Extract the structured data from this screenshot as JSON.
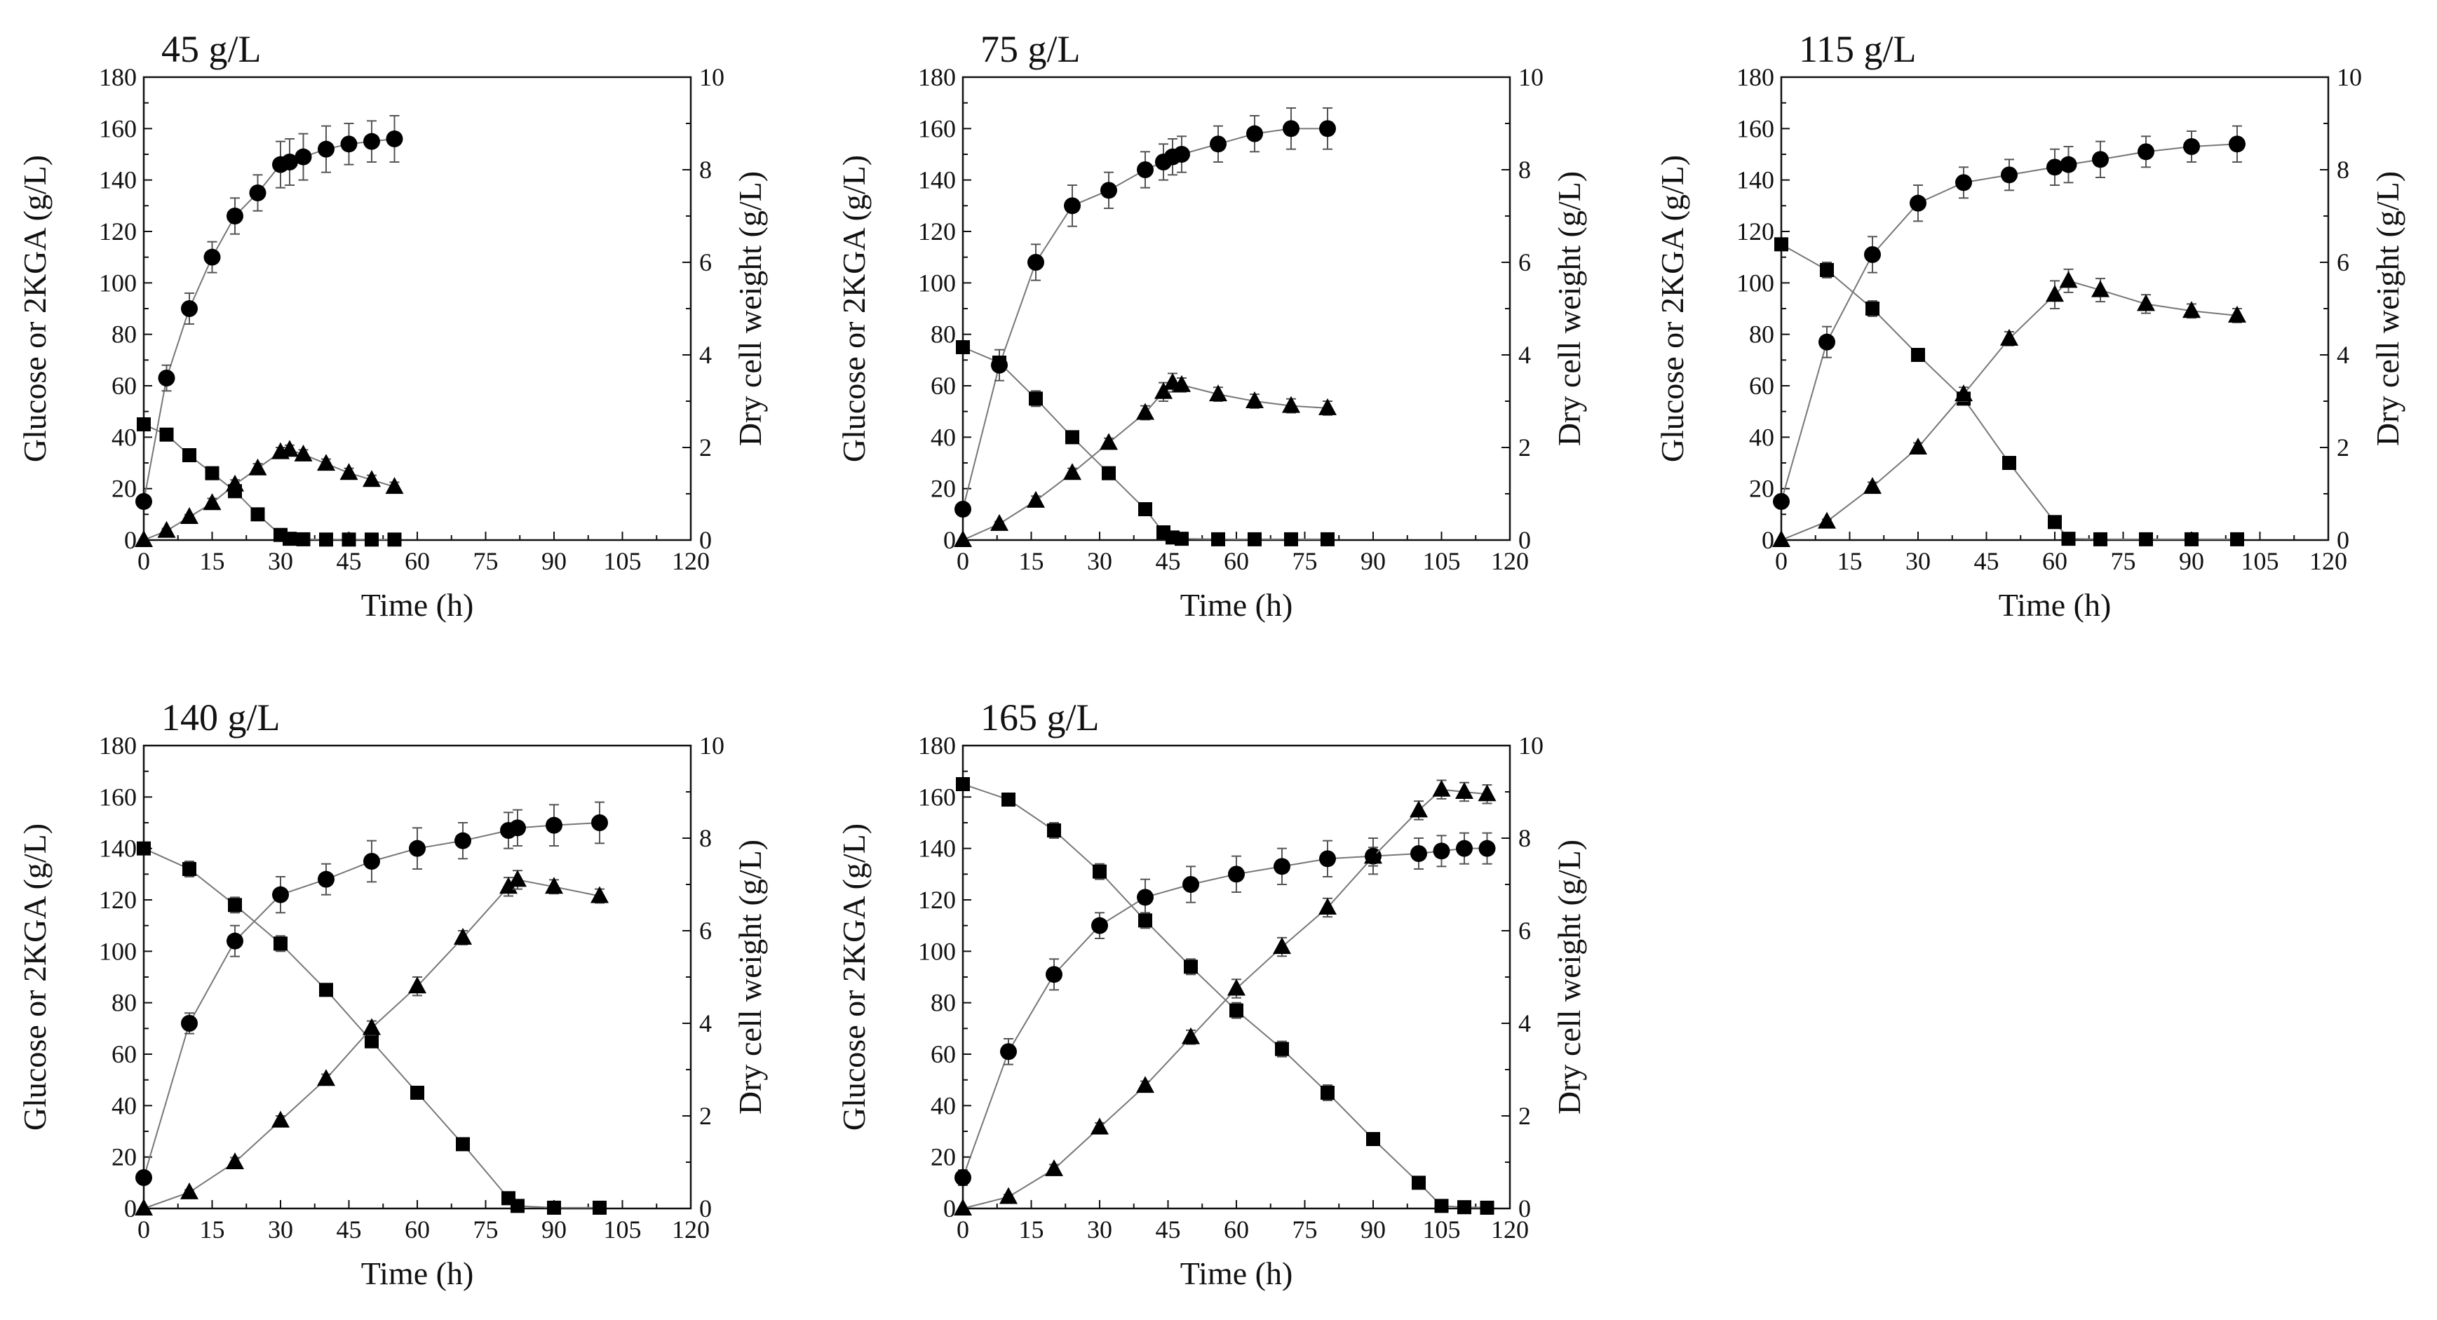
{
  "chart_data": [
    {
      "type": "line",
      "title": "45 g/L",
      "xlabel": "Time (h)",
      "ylabel": "Glucose or 2KGA (g/L)",
      "y2label": "Dry cell weight (g/L)",
      "xlim": [
        0,
        120
      ],
      "ylim": [
        0,
        180
      ],
      "y2lim": [
        0,
        10
      ],
      "xticks": [
        "0",
        "15",
        "30",
        "45",
        "60",
        "75",
        "90",
        "105",
        "120"
      ],
      "yticks": [
        "0",
        "20",
        "40",
        "60",
        "80",
        "100",
        "120",
        "140",
        "160",
        "180"
      ],
      "y2ticks": [
        "0",
        "2",
        "4",
        "6",
        "8",
        "10"
      ],
      "series": [
        {
          "name": "2KGA",
          "marker": "circle",
          "axis": "left",
          "x": [
            0,
            5,
            10,
            15,
            20,
            25,
            30,
            32,
            35,
            40,
            45,
            50,
            55
          ],
          "y": [
            15,
            63,
            90,
            110,
            126,
            135,
            146,
            147,
            149,
            152,
            154,
            155,
            156
          ],
          "err": [
            2,
            5,
            6,
            6,
            7,
            7,
            9,
            9,
            9,
            9,
            8,
            8,
            9
          ]
        },
        {
          "name": "Glucose",
          "marker": "square",
          "axis": "left",
          "x": [
            0,
            5,
            10,
            15,
            20,
            25,
            30,
            32,
            35,
            40,
            45,
            50,
            55
          ],
          "y": [
            45,
            41,
            33,
            26,
            19,
            10,
            2,
            0.5,
            0.3,
            0.2,
            0.2,
            0.2,
            0.2
          ],
          "err": [
            2,
            2,
            2,
            2,
            2,
            1,
            1,
            0,
            0,
            0,
            0,
            0,
            0
          ]
        },
        {
          "name": "Dry cell weight",
          "marker": "triangle",
          "axis": "right",
          "x": [
            0,
            5,
            10,
            15,
            20,
            25,
            30,
            32,
            35,
            40,
            45,
            50,
            55
          ],
          "y": [
            0,
            0.2,
            0.5,
            0.8,
            1.2,
            1.55,
            1.9,
            1.95,
            1.85,
            1.65,
            1.45,
            1.3,
            1.15
          ],
          "err": [
            0,
            0.05,
            0.05,
            0.1,
            0.1,
            0.1,
            0.1,
            0.1,
            0.1,
            0.1,
            0.1,
            0.1,
            0.1
          ]
        }
      ]
    },
    {
      "type": "line",
      "title": "75 g/L",
      "xlabel": "Time (h)",
      "ylabel": "Glucose or 2KGA (g/L)",
      "y2label": "Dry cell weight (g/L)",
      "xlim": [
        0,
        120
      ],
      "ylim": [
        0,
        180
      ],
      "y2lim": [
        0,
        10
      ],
      "xticks": [
        "0",
        "15",
        "30",
        "45",
        "60",
        "75",
        "90",
        "105",
        "120"
      ],
      "yticks": [
        "0",
        "20",
        "40",
        "60",
        "80",
        "100",
        "120",
        "140",
        "160",
        "180"
      ],
      "y2ticks": [
        "0",
        "2",
        "4",
        "6",
        "8",
        "10"
      ],
      "series": [
        {
          "name": "2KGA",
          "marker": "circle",
          "axis": "left",
          "x": [
            0,
            8,
            16,
            24,
            32,
            40,
            44,
            46,
            48,
            56,
            64,
            72,
            80
          ],
          "y": [
            12,
            68,
            108,
            130,
            136,
            144,
            147,
            149,
            150,
            154,
            158,
            160,
            160
          ],
          "err": [
            2,
            6,
            7,
            8,
            7,
            7,
            7,
            7,
            7,
            7,
            7,
            8,
            8
          ]
        },
        {
          "name": "Glucose",
          "marker": "square",
          "axis": "left",
          "x": [
            0,
            8,
            16,
            24,
            32,
            40,
            44,
            46,
            48,
            56,
            64,
            72,
            80
          ],
          "y": [
            75,
            69,
            55,
            40,
            26,
            12,
            3,
            1,
            0.5,
            0.3,
            0.3,
            0.3,
            0.3
          ],
          "err": [
            2,
            2,
            3,
            2,
            2,
            1,
            1,
            0,
            0,
            0,
            0,
            0,
            0
          ]
        },
        {
          "name": "Dry cell weight",
          "marker": "triangle",
          "axis": "right",
          "x": [
            0,
            8,
            16,
            24,
            32,
            40,
            44,
            46,
            48,
            56,
            64,
            72,
            80
          ],
          "y": [
            0,
            0.35,
            0.85,
            1.45,
            2.1,
            2.75,
            3.2,
            3.4,
            3.35,
            3.15,
            3.0,
            2.9,
            2.85
          ],
          "err": [
            0,
            0.05,
            0.1,
            0.1,
            0.1,
            0.15,
            0.2,
            0.2,
            0.15,
            0.15,
            0.15,
            0.15,
            0.15
          ]
        }
      ]
    },
    {
      "type": "line",
      "title": "115 g/L",
      "xlabel": "Time (h)",
      "ylabel": "Glucose or 2KGA (g/L)",
      "y2label": "Dry cell weight (g/L)",
      "xlim": [
        0,
        120
      ],
      "ylim": [
        0,
        180
      ],
      "y2lim": [
        0,
        10
      ],
      "xticks": [
        "0",
        "15",
        "30",
        "45",
        "60",
        "75",
        "90",
        "105",
        "120"
      ],
      "yticks": [
        "0",
        "20",
        "40",
        "60",
        "80",
        "100",
        "120",
        "140",
        "160",
        "180"
      ],
      "y2ticks": [
        "0",
        "2",
        "4",
        "6",
        "8",
        "10"
      ],
      "series": [
        {
          "name": "2KGA",
          "marker": "circle",
          "axis": "left",
          "x": [
            0,
            10,
            20,
            30,
            40,
            50,
            60,
            63,
            70,
            80,
            90,
            100
          ],
          "y": [
            15,
            77,
            111,
            131,
            139,
            142,
            145,
            146,
            148,
            151,
            153,
            154
          ],
          "err": [
            2,
            6,
            7,
            7,
            6,
            6,
            7,
            7,
            7,
            6,
            6,
            7
          ]
        },
        {
          "name": "Glucose",
          "marker": "square",
          "axis": "left",
          "x": [
            0,
            10,
            20,
            30,
            40,
            50,
            60,
            63,
            70,
            80,
            90,
            100
          ],
          "y": [
            115,
            105,
            90,
            72,
            55,
            30,
            7,
            0.5,
            0.3,
            0.3,
            0.3,
            0.3
          ],
          "err": [
            2,
            3,
            3,
            2,
            2,
            2,
            1,
            0,
            0,
            0,
            0,
            0
          ]
        },
        {
          "name": "Dry cell weight",
          "marker": "triangle",
          "axis": "right",
          "x": [
            0,
            10,
            20,
            30,
            40,
            50,
            60,
            63,
            70,
            80,
            90,
            100
          ],
          "y": [
            0,
            0.4,
            1.15,
            2.0,
            3.15,
            4.35,
            5.3,
            5.6,
            5.4,
            5.1,
            4.95,
            4.85
          ],
          "err": [
            0,
            0.05,
            0.1,
            0.1,
            0.15,
            0.15,
            0.3,
            0.25,
            0.25,
            0.2,
            0.15,
            0.15
          ]
        }
      ]
    },
    {
      "type": "line",
      "title": "140 g/L",
      "xlabel": "Time (h)",
      "ylabel": "Glucose or 2KGA (g/L)",
      "y2label": "Dry cell weight (g/L)",
      "xlim": [
        0,
        120
      ],
      "ylim": [
        0,
        180
      ],
      "y2lim": [
        0,
        10
      ],
      "xticks": [
        "0",
        "15",
        "30",
        "45",
        "60",
        "75",
        "90",
        "105",
        "120"
      ],
      "yticks": [
        "0",
        "20",
        "40",
        "60",
        "80",
        "100",
        "120",
        "140",
        "160",
        "180"
      ],
      "y2ticks": [
        "0",
        "2",
        "4",
        "6",
        "8",
        "10"
      ],
      "series": [
        {
          "name": "2KGA",
          "marker": "circle",
          "axis": "left",
          "x": [
            0,
            10,
            20,
            30,
            40,
            50,
            60,
            70,
            80,
            82,
            90,
            100
          ],
          "y": [
            12,
            72,
            104,
            122,
            128,
            135,
            140,
            143,
            147,
            148,
            149,
            150
          ],
          "err": [
            2,
            4,
            6,
            7,
            6,
            8,
            8,
            7,
            7,
            7,
            8,
            8
          ]
        },
        {
          "name": "Glucose",
          "marker": "square",
          "axis": "left",
          "x": [
            0,
            10,
            20,
            30,
            40,
            50,
            60,
            70,
            80,
            82,
            90,
            100
          ],
          "y": [
            140,
            132,
            118,
            103,
            85,
            65,
            45,
            25,
            4,
            1,
            0.3,
            0.3
          ],
          "err": [
            2,
            3,
            3,
            3,
            2,
            2,
            2,
            2,
            1,
            0,
            0,
            0
          ]
        },
        {
          "name": "Dry cell weight",
          "marker": "triangle",
          "axis": "right",
          "x": [
            0,
            10,
            20,
            30,
            40,
            50,
            60,
            70,
            80,
            82,
            90,
            100
          ],
          "y": [
            0,
            0.35,
            1.0,
            1.9,
            2.8,
            3.9,
            4.8,
            5.85,
            6.95,
            7.1,
            6.95,
            6.75
          ],
          "err": [
            0,
            0.05,
            0.1,
            0.1,
            0.1,
            0.15,
            0.2,
            0.15,
            0.2,
            0.2,
            0.15,
            0.15
          ]
        }
      ]
    },
    {
      "type": "line",
      "title": "165 g/L",
      "xlabel": "Time (h)",
      "ylabel": "Glucose or 2KGA (g/L)",
      "y2label": "Dry cell weight (g/L)",
      "xlim": [
        0,
        120
      ],
      "ylim": [
        0,
        180
      ],
      "y2lim": [
        0,
        10
      ],
      "xticks": [
        "0",
        "15",
        "30",
        "45",
        "60",
        "75",
        "90",
        "105",
        "120"
      ],
      "yticks": [
        "0",
        "20",
        "40",
        "60",
        "80",
        "100",
        "120",
        "140",
        "160",
        "180"
      ],
      "y2ticks": [
        "0",
        "2",
        "4",
        "6",
        "8",
        "10"
      ],
      "series": [
        {
          "name": "2KGA",
          "marker": "circle",
          "axis": "left",
          "x": [
            0,
            10,
            20,
            30,
            40,
            50,
            60,
            70,
            80,
            90,
            100,
            105,
            110,
            115
          ],
          "y": [
            12,
            61,
            91,
            110,
            121,
            126,
            130,
            133,
            136,
            137,
            138,
            139,
            140,
            140
          ],
          "err": [
            3,
            5,
            6,
            5,
            7,
            7,
            7,
            7,
            7,
            7,
            6,
            6,
            6,
            6
          ]
        },
        {
          "name": "Glucose",
          "marker": "square",
          "axis": "left",
          "x": [
            0,
            10,
            20,
            30,
            40,
            50,
            60,
            70,
            80,
            90,
            100,
            105,
            110,
            115
          ],
          "y": [
            165,
            159,
            147,
            131,
            112,
            94,
            77,
            62,
            45,
            27,
            10,
            1,
            0.5,
            0.3
          ],
          "err": [
            2,
            2,
            3,
            3,
            3,
            3,
            3,
            3,
            3,
            2,
            2,
            0,
            0,
            0
          ]
        },
        {
          "name": "Dry cell weight",
          "marker": "triangle",
          "axis": "right",
          "x": [
            0,
            10,
            20,
            30,
            40,
            50,
            60,
            70,
            80,
            90,
            100,
            105,
            110,
            115
          ],
          "y": [
            0,
            0.25,
            0.85,
            1.75,
            2.65,
            3.7,
            4.75,
            5.65,
            6.5,
            7.6,
            8.6,
            9.05,
            9.0,
            8.95
          ],
          "err": [
            0,
            0.05,
            0.1,
            0.1,
            0.1,
            0.15,
            0.2,
            0.2,
            0.2,
            0.2,
            0.2,
            0.2,
            0.2,
            0.2
          ]
        }
      ]
    }
  ]
}
